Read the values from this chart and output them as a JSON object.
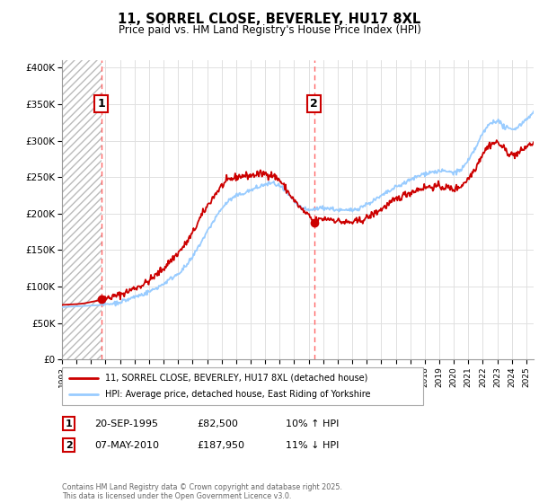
{
  "title": "11, SORREL CLOSE, BEVERLEY, HU17 8XL",
  "subtitle": "Price paid vs. HM Land Registry's House Price Index (HPI)",
  "legend_line1": "11, SORREL CLOSE, BEVERLEY, HU17 8XL (detached house)",
  "legend_line2": "HPI: Average price, detached house, East Riding of Yorkshire",
  "annotation1_date": "20-SEP-1995",
  "annotation1_price": "£82,500",
  "annotation1_hpi": "10% ↑ HPI",
  "annotation2_date": "07-MAY-2010",
  "annotation2_price": "£187,950",
  "annotation2_hpi": "11% ↓ HPI",
  "footer": "Contains HM Land Registry data © Crown copyright and database right 2025.\nThis data is licensed under the Open Government Licence v3.0.",
  "red_line_color": "#cc0000",
  "blue_line_color": "#99ccff",
  "dot_color": "#cc0000",
  "vline_color": "#ff6666",
  "grid_color": "#e0e0e0",
  "ylim": [
    0,
    410000
  ],
  "xlim_start": 1993.0,
  "xlim_end": 2025.5,
  "purchase1_x": 1995.72,
  "purchase1_y": 82500,
  "purchase2_x": 2010.37,
  "purchase2_y": 187950
}
